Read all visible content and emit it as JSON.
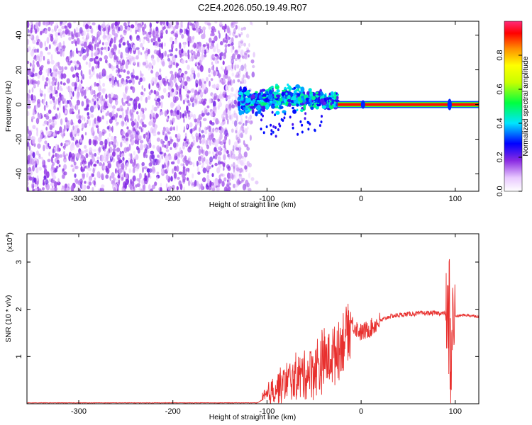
{
  "title": "C2E4.2026.050.19.49.R07",
  "chart_data": [
    {
      "type": "heatmap",
      "xlabel": "Height of straight line (km)",
      "ylabel": "Frequency (Hz)",
      "xlim": [
        -355,
        125
      ],
      "ylim": [
        -50,
        48
      ],
      "x_ticks": [
        -300,
        -200,
        -100,
        0,
        100
      ],
      "y_ticks": [
        -40,
        -20,
        0,
        20,
        40
      ],
      "colorbar": {
        "label": "Normalized spectral amplitude",
        "range": [
          0,
          1
        ],
        "ticks": [
          0.0,
          0.2,
          0.4,
          0.6,
          0.8
        ]
      },
      "regions": [
        {
          "x": [
            -355,
            -130
          ],
          "y": [
            -50,
            48
          ],
          "amplitude": [
            0.05,
            0.2
          ],
          "pattern": "speckle"
        },
        {
          "x": [
            -130,
            -25
          ],
          "y": [
            -5,
            10
          ],
          "amplitude": [
            0.2,
            0.5
          ],
          "pattern": "scatter"
        },
        {
          "x": [
            -25,
            125
          ],
          "y": [
            0,
            0
          ],
          "amplitude": [
            0.8,
            1.0
          ],
          "pattern": "line"
        }
      ]
    },
    {
      "type": "line",
      "xlabel": "Height of straight line (km)",
      "ylabel": "SNR (10 * v/v)",
      "y_multiplier": "(x10",
      "y_multiplier_exp": "4",
      "y_multiplier_close": ")",
      "xlim": [
        -355,
        125
      ],
      "ylim": [
        0,
        3.6
      ],
      "x_ticks": [
        -300,
        -200,
        -100,
        0,
        100
      ],
      "y_ticks": [
        1,
        2,
        3
      ],
      "series": [
        {
          "color": "#e8302e",
          "x": [
            -355,
            -200,
            -110,
            -100,
            -90,
            -80,
            -70,
            -60,
            -50,
            -40,
            -30,
            -20,
            -15,
            -10,
            0,
            10,
            20,
            30,
            50,
            70,
            85,
            92,
            95,
            97,
            100,
            110,
            125
          ],
          "y": [
            0.02,
            0.02,
            0.02,
            0.15,
            0.35,
            0.45,
            0.55,
            0.62,
            0.75,
            0.9,
            1.05,
            1.3,
            1.55,
            1.7,
            1.5,
            1.6,
            1.75,
            1.85,
            1.9,
            1.92,
            1.92,
            1.9,
            0.3,
            1.75,
            1.85,
            1.88,
            1.85
          ]
        }
      ]
    }
  ]
}
